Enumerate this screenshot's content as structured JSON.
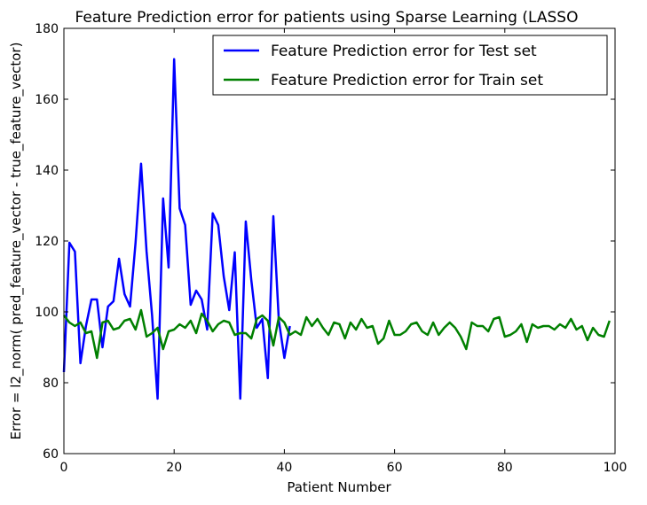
{
  "chart_data": {
    "type": "line",
    "title": "Feature Prediction error for patients using Sparse Learning (LASSO",
    "xlabel": "Patient Number",
    "ylabel": "Error = l2_norm( pred_feature_vector - true_feature_vector)",
    "xlim": [
      0,
      100
    ],
    "ylim": [
      60,
      180
    ],
    "xticks": [
      0,
      20,
      40,
      60,
      80,
      100
    ],
    "yticks": [
      60,
      80,
      100,
      120,
      140,
      160,
      180
    ],
    "grid": false,
    "legend_position": "top-right",
    "series": [
      {
        "name": "Feature Prediction error for Test set",
        "color": "#0000ff",
        "x": [
          0,
          1,
          2,
          3,
          4,
          5,
          6,
          7,
          8,
          9,
          10,
          11,
          12,
          13,
          14,
          15,
          16,
          17,
          18,
          19,
          20,
          21,
          22,
          23,
          24,
          25,
          26,
          27,
          28,
          29,
          30,
          31,
          32,
          33,
          34,
          35,
          36,
          37,
          38,
          39,
          40,
          41
        ],
        "y": [
          83,
          119.5,
          117,
          85.5,
          96,
          103.5,
          103.5,
          90,
          101.5,
          103,
          115,
          105,
          101.5,
          119.5,
          141.8,
          117,
          99,
          75.5,
          132,
          112.5,
          171.3,
          129.2,
          124.5,
          102,
          106,
          103.5,
          95,
          127.8,
          124.5,
          110,
          100.5,
          116.8,
          75.5,
          125.5,
          109,
          95.5,
          98,
          81.3,
          127,
          97.5,
          87,
          96
        ]
      },
      {
        "name": "Feature Prediction error for Train set",
        "color": "#008000",
        "x": [
          0,
          1,
          2,
          3,
          4,
          5,
          6,
          7,
          8,
          9,
          10,
          11,
          12,
          13,
          14,
          15,
          16,
          17,
          18,
          19,
          20,
          21,
          22,
          23,
          24,
          25,
          26,
          27,
          28,
          29,
          30,
          31,
          32,
          33,
          34,
          35,
          36,
          37,
          38,
          39,
          40,
          41,
          42,
          43,
          44,
          45,
          46,
          47,
          48,
          49,
          50,
          51,
          52,
          53,
          54,
          55,
          56,
          57,
          58,
          59,
          60,
          61,
          62,
          63,
          64,
          65,
          66,
          67,
          68,
          69,
          70,
          71,
          72,
          73,
          74,
          75,
          76,
          77,
          78,
          79,
          80,
          81,
          82,
          83,
          84,
          85,
          86,
          87,
          88,
          89,
          90,
          91,
          92,
          93,
          94,
          95,
          96,
          97,
          98,
          99
        ],
        "y": [
          99,
          97,
          96,
          97,
          94,
          94.5,
          87,
          97,
          97.5,
          95,
          95.5,
          97.5,
          98,
          95,
          100.5,
          93,
          94,
          95.5,
          89.5,
          94.5,
          95,
          96.5,
          95.5,
          97.5,
          94,
          99.5,
          97.5,
          94.5,
          96.5,
          97.5,
          97,
          93.5,
          94,
          94,
          92.5,
          98,
          99,
          97.5,
          90.5,
          98.5,
          97,
          93.5,
          94.5,
          93.5,
          98.5,
          96,
          98,
          95.5,
          93.5,
          97,
          96.5,
          92.5,
          97,
          95,
          98,
          95.5,
          96,
          91,
          92.5,
          97.5,
          93.5,
          93.5,
          94.5,
          96.5,
          97,
          94.5,
          93.5,
          97,
          93.5,
          95.5,
          97,
          95.5,
          93,
          89.5,
          97,
          96,
          96,
          94.5,
          98,
          98.5,
          93,
          93.5,
          94.5,
          96.5,
          91.5,
          96.5,
          95.5,
          96,
          96,
          95,
          96.5,
          95.5,
          98,
          95,
          96,
          92,
          95.5,
          93.5,
          93,
          97.5
        ]
      }
    ]
  }
}
